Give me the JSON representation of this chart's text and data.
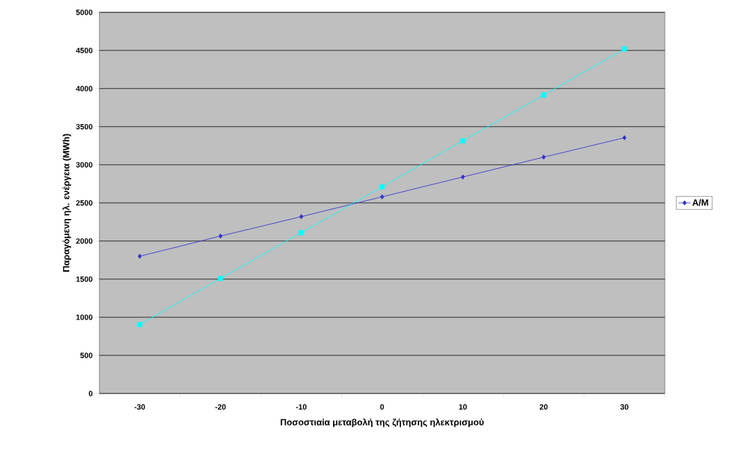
{
  "chart_data": {
    "type": "line",
    "xlabel": "Ποσοστιαία μεταβολή της ζήτησης ηλεκτρισμού",
    "ylabel": "Παραγόμενη ηλ. ενέργεια (MWh)",
    "categories": [
      "-30",
      "-20",
      "-10",
      "0",
      "10",
      "20",
      "30"
    ],
    "series": [
      {
        "name": "A/M",
        "color": "#3333cc",
        "marker": "diamond",
        "values": [
          1800,
          2065,
          2320,
          2580,
          2840,
          3100,
          3355
        ]
      },
      {
        "color": "#00ffff",
        "marker": "square",
        "values": [
          905,
          1510,
          2110,
          2710,
          3315,
          3915,
          4520
        ]
      }
    ],
    "ylim": [
      0,
      5000
    ],
    "yticks": [
      0,
      500,
      1000,
      1500,
      2000,
      2500,
      3000,
      3500,
      4000,
      4500,
      5000
    ],
    "grid": "y",
    "legend": "right"
  }
}
